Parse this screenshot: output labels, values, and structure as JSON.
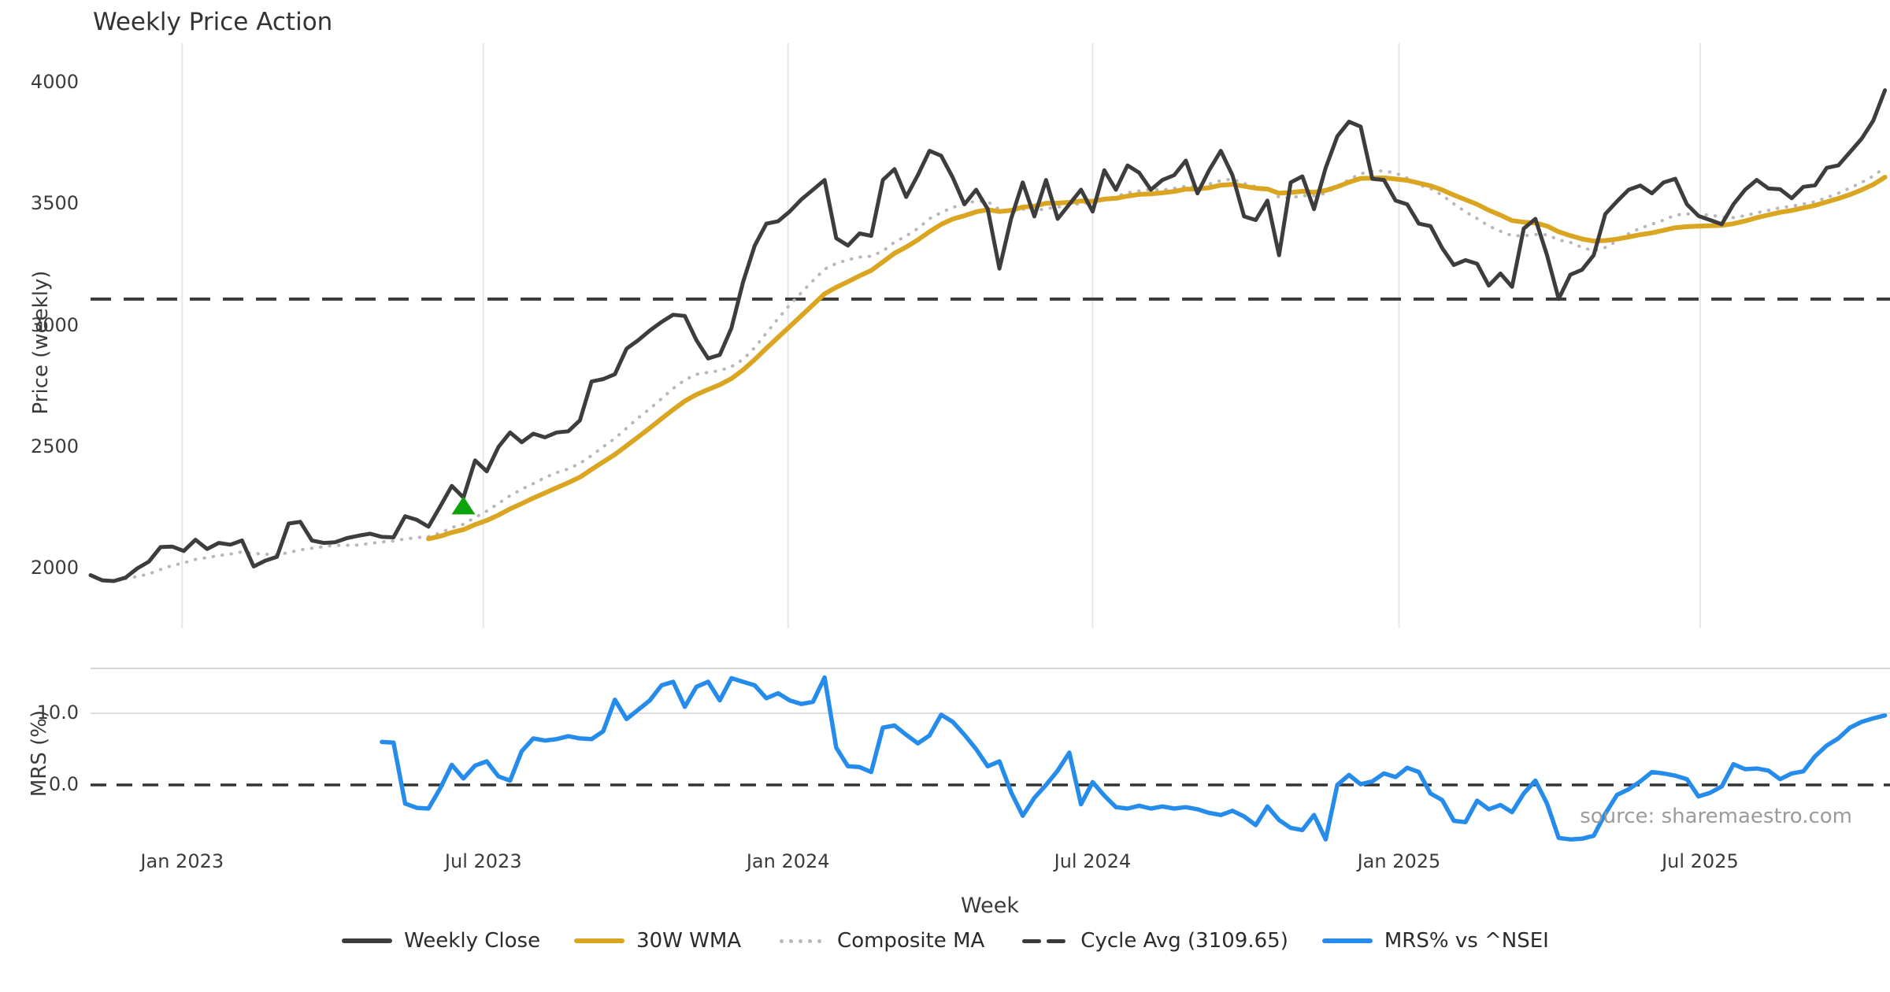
{
  "title": "Weekly Price Action",
  "source_note": "source: sharemaestro.com",
  "colors": {
    "weekly_close": "#3d3d3d",
    "wma30": "#DAA520",
    "composite_ma": "#b8b8b8",
    "cycle_avg": "#3a3a3a",
    "mrs": "#268CEB",
    "signal_marker": "#0ca30c",
    "gridline": "#e7e7e7",
    "mrs_gridline": "#dedede",
    "panel_border": "#d4d4d4"
  },
  "axes": {
    "price_ylabel": "Price (weekly)",
    "price_ticks": [
      2000,
      2500,
      3000,
      3500,
      4000
    ],
    "mrs_ylabel": "MRS (%)",
    "mrs_ticks": [
      {
        "label": "10.0",
        "value": 10.0
      },
      {
        "label": "0.0",
        "value": 0.0
      }
    ],
    "xlabel": "Week",
    "x_ticks": [
      {
        "label": "Jan 2023",
        "week": 7.86
      },
      {
        "label": "Jul 2023",
        "week": 33.71
      },
      {
        "label": "Jan 2024",
        "week": 59.86
      },
      {
        "label": "Jul 2024",
        "week": 86.0
      },
      {
        "label": "Jan 2025",
        "week": 112.29
      },
      {
        "label": "Jul 2025",
        "week": 138.14
      }
    ]
  },
  "legend": {
    "items": [
      {
        "label": "Weekly Close",
        "style": "solid",
        "color": "#3d3d3d"
      },
      {
        "label": "30W WMA",
        "style": "solid",
        "color": "#DAA520"
      },
      {
        "label": "Composite MA",
        "style": "dotted",
        "color": "#b8b8b8"
      },
      {
        "label": "Cycle Avg (3109.65)",
        "style": "dashed",
        "color": "#3a3a3a"
      },
      {
        "label": "MRS% vs ^NSEI",
        "style": "solid",
        "color": "#268CEB"
      }
    ]
  },
  "chart_data": [
    {
      "type": "line",
      "panel": "price",
      "title": "Weekly Price Action",
      "xlabel": "Week",
      "ylabel": "Price (weekly)",
      "ylim": [
        1760,
        4120
      ],
      "x_start_date": "2022-11-07",
      "x_unit": "weeks",
      "grid": "vertical-only",
      "series": [
        {
          "name": "Weekly Close",
          "style": "solid",
          "color": "#3d3d3d",
          "start_week": 0,
          "values": [
            1972,
            1951,
            1948,
            1962,
            2000,
            2028,
            2088,
            2090,
            2072,
            2118,
            2080,
            2105,
            2098,
            2115,
            2008,
            2032,
            2048,
            2185,
            2192,
            2115,
            2105,
            2108,
            2125,
            2135,
            2143,
            2130,
            2128,
            2215,
            2200,
            2172,
            2255,
            2340,
            2292,
            2445,
            2400,
            2500,
            2560,
            2520,
            2555,
            2540,
            2560,
            2565,
            2610,
            2770,
            2780,
            2800,
            2905,
            2940,
            2980,
            3015,
            3045,
            3040,
            2940,
            2865,
            2880,
            2990,
            3180,
            3330,
            3420,
            3430,
            3470,
            3520,
            3560,
            3600,
            3360,
            3330,
            3380,
            3370,
            3600,
            3645,
            3530,
            3620,
            3720,
            3700,
            3610,
            3500,
            3560,
            3480,
            3235,
            3440,
            3590,
            3450,
            3600,
            3440,
            3500,
            3560,
            3470,
            3640,
            3560,
            3660,
            3630,
            3560,
            3600,
            3620,
            3680,
            3545,
            3640,
            3720,
            3620,
            3450,
            3435,
            3515,
            3290,
            3590,
            3615,
            3480,
            3650,
            3780,
            3840,
            3820,
            3605,
            3600,
            3515,
            3500,
            3420,
            3410,
            3320,
            3250,
            3270,
            3255,
            3165,
            3215,
            3160,
            3400,
            3440,
            3290,
            3110,
            3210,
            3230,
            3290,
            3460,
            3512,
            3560,
            3577,
            3545,
            3590,
            3605,
            3500,
            3452,
            3435,
            3418,
            3500,
            3560,
            3600,
            3565,
            3562,
            3525,
            3572,
            3578,
            3650,
            3660,
            3715,
            3770,
            3845,
            3970
          ]
        },
        {
          "name": "30W WMA",
          "style": "solid",
          "color": "#DAA520",
          "derived": "weighted_moving_average_of_weekly_close",
          "window": 30,
          "start_week": 29
        },
        {
          "name": "Composite MA",
          "style": "dotted",
          "color": "#b8b8b8",
          "derived": "average_of_smas_of_weekly_close",
          "windows": [
            5,
            10,
            20,
            30
          ],
          "start_week": 3
        },
        {
          "name": "Cycle Avg (3109.65)",
          "style": "dashed",
          "color": "#3a3a3a",
          "hline_value": 3109.65
        }
      ],
      "markers": [
        {
          "shape": "triangle-up",
          "color": "#0ca30c",
          "week": 32,
          "price": 2255,
          "meaning": "signal marker"
        }
      ]
    },
    {
      "type": "line",
      "panel": "mrs",
      "ylabel": "MRS (%)",
      "ylim": [
        -8.8,
        16.3
      ],
      "zero_line": {
        "style": "dashed",
        "value": 0.0
      },
      "gridline_value": 10.0,
      "series": [
        {
          "name": "MRS% vs ^NSEI",
          "style": "solid",
          "color": "#268CEB",
          "start_week": 25,
          "values": [
            6.0,
            5.9,
            -2.6,
            -3.2,
            -3.3,
            -0.5,
            2.8,
            0.9,
            2.7,
            3.3,
            1.2,
            0.6,
            4.7,
            6.5,
            6.2,
            6.4,
            6.8,
            6.5,
            6.4,
            7.5,
            11.9,
            9.2,
            10.5,
            11.8,
            13.9,
            14.4,
            10.9,
            13.7,
            14.4,
            11.8,
            14.9,
            14.4,
            13.9,
            12.1,
            12.8,
            11.8,
            11.3,
            11.6,
            15.0,
            5.2,
            2.6,
            2.5,
            1.8,
            8.0,
            8.3,
            7.0,
            5.8,
            6.9,
            9.8,
            8.8,
            7.0,
            5.0,
            2.6,
            3.3,
            -1.0,
            -4.3,
            -1.8,
            0.0,
            2.0,
            4.5,
            -2.7,
            0.4,
            -1.5,
            -3.1,
            -3.3,
            -2.9,
            -3.3,
            -3.0,
            -3.3,
            -3.1,
            -3.4,
            -3.9,
            -4.2,
            -3.6,
            -4.4,
            -5.6,
            -3.0,
            -4.9,
            -6.0,
            -6.3,
            -4.2,
            -7.6,
            0.0,
            1.4,
            0.1,
            0.5,
            1.6,
            1.1,
            2.4,
            1.8,
            -1.2,
            -2.1,
            -5.0,
            -5.2,
            -2.2,
            -3.4,
            -2.8,
            -3.8,
            -1.2,
            0.6,
            -2.6,
            -7.4,
            -7.6,
            -7.5,
            -7.1,
            -4.0,
            -1.4,
            -0.6,
            0.5,
            1.8,
            1.6,
            1.3,
            0.8,
            -1.6,
            -1.1,
            -0.2,
            2.9,
            2.2,
            2.3,
            2.0,
            0.8,
            1.6,
            1.9,
            4.0,
            5.5,
            6.5,
            8.0,
            8.8,
            9.3,
            9.7
          ]
        }
      ]
    }
  ]
}
